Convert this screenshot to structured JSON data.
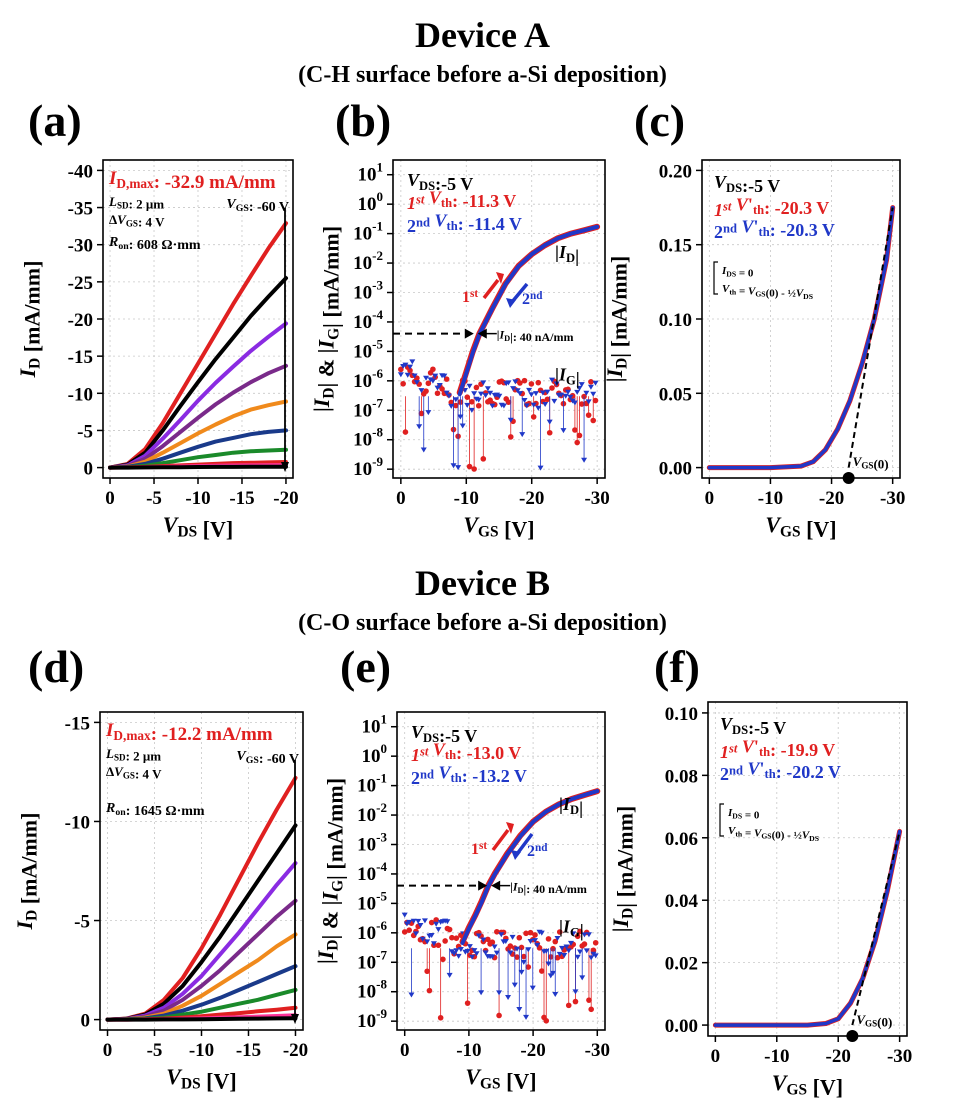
{
  "deviceA": {
    "title": "Device A",
    "subtitle": "(C-H surface before a-Si deposition)"
  },
  "deviceB": {
    "title": "Device B",
    "subtitle": "(C-O surface before a-Si deposition)"
  },
  "colors": {
    "red": "#e02020",
    "blue": "#2038c8",
    "black": "#000000",
    "orange": "#f08a1c",
    "purple": "#8a2be2",
    "violet": "#7a2a8a",
    "navy": "#1a3a8a",
    "green": "#1a8a2a",
    "pink": "#ff3399",
    "grid": "#c8c8c8"
  },
  "chart_data": [
    {
      "panel": "(a)",
      "type": "line",
      "xlabel": "V_DS [V]",
      "ylabel": "I_D [mA/mm]",
      "xlim": [
        0,
        -20
      ],
      "ylim": [
        0,
        -40
      ],
      "xticks": [
        "0",
        "-5",
        "-10",
        "-15",
        "-20"
      ],
      "yticks": [
        "0",
        "-5",
        "-10",
        "-15",
        "-20",
        "-25",
        "-30",
        "-35",
        "-40"
      ],
      "annotations": [
        "I_D,max: -32.9 mA/mm",
        "L_SD: 2 μm",
        "ΔV_GS: 4 V",
        "R_on: 608 Ω·mm",
        "V_GS: -60 V"
      ],
      "series": [
        {
          "color": "red",
          "x": [
            0,
            -2,
            -4,
            -6,
            -8,
            -10,
            -12,
            -14,
            -16,
            -18,
            -20
          ],
          "y": [
            0,
            -0.5,
            -2.5,
            -6,
            -10,
            -14,
            -18,
            -22,
            -25.8,
            -29.5,
            -32.9
          ]
        },
        {
          "color": "black",
          "x": [
            0,
            -2,
            -4,
            -6,
            -8,
            -10,
            -12,
            -14,
            -16,
            -18,
            -20
          ],
          "y": [
            0,
            -0.4,
            -2,
            -5,
            -8.3,
            -11.5,
            -14.6,
            -17.5,
            -20.4,
            -23,
            -25.5
          ]
        },
        {
          "color": "purple",
          "x": [
            0,
            -2,
            -4,
            -6,
            -8,
            -10,
            -12,
            -14,
            -16,
            -18,
            -20
          ],
          "y": [
            0,
            -0.3,
            -1.6,
            -3.9,
            -6.4,
            -9,
            -11.4,
            -13.6,
            -15.7,
            -17.6,
            -19.4
          ]
        },
        {
          "color": "violet",
          "x": [
            0,
            -2,
            -4,
            -6,
            -8,
            -10,
            -12,
            -14,
            -16,
            -18,
            -20
          ],
          "y": [
            0,
            -0.2,
            -1.2,
            -2.9,
            -4.8,
            -6.7,
            -8.5,
            -10.1,
            -11.5,
            -12.7,
            -13.7
          ]
        },
        {
          "color": "orange",
          "x": [
            0,
            -2,
            -4,
            -6,
            -8,
            -10,
            -12,
            -14,
            -16,
            -18,
            -20
          ],
          "y": [
            0,
            -0.15,
            -0.8,
            -2,
            -3.3,
            -4.6,
            -5.8,
            -6.9,
            -7.8,
            -8.4,
            -8.9
          ]
        },
        {
          "color": "navy",
          "x": [
            0,
            -2,
            -4,
            -6,
            -8,
            -10,
            -12,
            -14,
            -16,
            -18,
            -20
          ],
          "y": [
            0,
            -0.1,
            -0.5,
            -1.2,
            -2,
            -2.8,
            -3.5,
            -4,
            -4.5,
            -4.8,
            -5
          ]
        },
        {
          "color": "green",
          "x": [
            0,
            -2,
            -4,
            -6,
            -8,
            -10,
            -12,
            -14,
            -16,
            -18,
            -20
          ],
          "y": [
            0,
            -0.05,
            -0.25,
            -0.6,
            -1,
            -1.4,
            -1.7,
            -2,
            -2.2,
            -2.3,
            -2.4
          ]
        },
        {
          "color": "red",
          "x": [
            0,
            -2,
            -4,
            -6,
            -8,
            -10,
            -12,
            -14,
            -16,
            -18,
            -20
          ],
          "y": [
            0,
            -0.02,
            -0.1,
            -0.2,
            -0.3,
            -0.4,
            -0.5,
            -0.6,
            -0.65,
            -0.7,
            -0.75
          ]
        },
        {
          "color": "pink",
          "x": [
            0,
            -2,
            -4,
            -6,
            -8,
            -10,
            -12,
            -14,
            -16,
            -18,
            -20
          ],
          "y": [
            0,
            -0.01,
            -0.05,
            -0.1,
            -0.15,
            -0.2,
            -0.25,
            -0.28,
            -0.3,
            -0.32,
            -0.34
          ]
        },
        {
          "color": "black",
          "x": [
            0,
            -2,
            -4,
            -6,
            -8,
            -10,
            -12,
            -14,
            -16,
            -18,
            -20
          ],
          "y": [
            0,
            0,
            -0.02,
            -0.04,
            -0.06,
            -0.08,
            -0.09,
            -0.1,
            -0.11,
            -0.12,
            -0.12
          ]
        }
      ]
    },
    {
      "panel": "(b)",
      "type": "line",
      "yscale": "log",
      "xlabel": "V_GS [V]",
      "ylabel": "|I_D| & |I_G| [mA/mm]",
      "xlim": [
        0,
        -30
      ],
      "ylim": [
        1e-09,
        10
      ],
      "xticks": [
        "0",
        "-10",
        "-20",
        "-30"
      ],
      "annotations": [
        "V_DS:-5 V",
        "1st V_th: -11.3 V",
        "2nd V_th: -11.4 V",
        "|I_D|",
        "|I_G|",
        "|I_D|: 40 nA/mm",
        "1st",
        "2nd"
      ],
      "series": [
        {
          "name": "1st",
          "color": "red",
          "x": [
            -9,
            -10,
            -11,
            -12,
            -14,
            -16,
            -18,
            -20,
            -22,
            -24,
            -26,
            -28,
            -30
          ],
          "y": [
            4e-07,
            2e-06,
            1e-05,
            4e-05,
            0.0003,
            0.002,
            0.008,
            0.02,
            0.04,
            0.07,
            0.1,
            0.13,
            0.17
          ]
        },
        {
          "name": "2nd",
          "color": "blue",
          "x": [
            -9,
            -10,
            -11,
            -12,
            -14,
            -16,
            -18,
            -20,
            -22,
            -24,
            -26,
            -28,
            -30
          ],
          "y": [
            3.5e-07,
            1.8e-06,
            9e-06,
            3.8e-05,
            0.00029,
            0.0019,
            0.0078,
            0.02,
            0.04,
            0.07,
            0.1,
            0.13,
            0.17
          ]
        }
      ],
      "gate_leakage_range": [
        3e-09,
        3e-06
      ]
    },
    {
      "panel": "(c)",
      "type": "line",
      "xlabel": "V_GS [V]",
      "ylabel": "|I_D| [mA/mm]",
      "xlim": [
        0,
        -30
      ],
      "ylim": [
        0,
        0.2
      ],
      "xticks": [
        "0",
        "-10",
        "-20",
        "-30"
      ],
      "yticks": [
        "0.00",
        "0.05",
        "0.10",
        "0.15",
        "0.20"
      ],
      "annotations": [
        "V_DS:-5 V",
        "1st V'_th: -20.3 V",
        "2nd V'_th: -20.3 V",
        "I_DS = 0",
        "V_th = V_GS(0) - ½V_DS",
        "V_GS(0)"
      ],
      "series": [
        {
          "name": "1st",
          "color": "red",
          "x": [
            0,
            -10,
            -15,
            -17,
            -19,
            -21,
            -23,
            -25,
            -27,
            -29,
            -30
          ],
          "y": [
            0,
            0,
            0.001,
            0.004,
            0.012,
            0.026,
            0.045,
            0.07,
            0.1,
            0.14,
            0.175
          ]
        },
        {
          "name": "2nd",
          "color": "blue",
          "x": [
            0,
            -10,
            -15,
            -17,
            -19,
            -21,
            -23,
            -25,
            -27,
            -29,
            -30
          ],
          "y": [
            0,
            0,
            0.001,
            0.004,
            0.012,
            0.026,
            0.045,
            0.07,
            0.1,
            0.14,
            0.175
          ]
        }
      ],
      "fit_line": {
        "x": [
          -22.8,
          -30
        ],
        "y": [
          0,
          0.175
        ]
      },
      "vgs0": -22.8
    },
    {
      "panel": "(d)",
      "type": "line",
      "xlabel": "V_DS [V]",
      "ylabel": "I_D [mA/mm]",
      "xlim": [
        0,
        -20
      ],
      "ylim": [
        0,
        -15
      ],
      "xticks": [
        "0",
        "-5",
        "-10",
        "-15",
        "-20"
      ],
      "yticks": [
        "0",
        "-5",
        "-10",
        "-15"
      ],
      "annotations": [
        "I_D,max: -12.2 mA/mm",
        "L_SD: 2 μm",
        "ΔV_GS: 4 V",
        "R_on: 1645 Ω·mm",
        "V_GS: -60 V"
      ],
      "series": [
        {
          "color": "red",
          "x": [
            0,
            -2,
            -4,
            -6,
            -8,
            -10,
            -12,
            -14,
            -16,
            -18,
            -20
          ],
          "y": [
            0,
            -0.05,
            -0.3,
            -1,
            -2.1,
            -3.6,
            -5.3,
            -7.1,
            -8.9,
            -10.6,
            -12.2
          ]
        },
        {
          "color": "black",
          "x": [
            0,
            -2,
            -4,
            -6,
            -8,
            -10,
            -12,
            -14,
            -16,
            -18,
            -20
          ],
          "y": [
            0,
            -0.04,
            -0.25,
            -0.8,
            -1.7,
            -2.9,
            -4.2,
            -5.6,
            -7,
            -8.4,
            -9.8
          ]
        },
        {
          "color": "purple",
          "x": [
            0,
            -2,
            -4,
            -6,
            -8,
            -10,
            -12,
            -14,
            -16,
            -18,
            -20
          ],
          "y": [
            0,
            -0.03,
            -0.2,
            -0.6,
            -1.3,
            -2.2,
            -3.3,
            -4.4,
            -5.6,
            -6.8,
            -7.9
          ]
        },
        {
          "color": "violet",
          "x": [
            0,
            -2,
            -4,
            -6,
            -8,
            -10,
            -12,
            -14,
            -16,
            -18,
            -20
          ],
          "y": [
            0,
            -0.02,
            -0.15,
            -0.45,
            -1,
            -1.7,
            -2.5,
            -3.4,
            -4.3,
            -5.2,
            -6
          ]
        },
        {
          "color": "orange",
          "x": [
            0,
            -2,
            -4,
            -6,
            -8,
            -10,
            -12,
            -14,
            -16,
            -18,
            -20
          ],
          "y": [
            0,
            -0.02,
            -0.1,
            -0.3,
            -0.7,
            -1.2,
            -1.8,
            -2.4,
            -3,
            -3.7,
            -4.3
          ]
        },
        {
          "color": "navy",
          "x": [
            0,
            -2,
            -4,
            -6,
            -8,
            -10,
            -12,
            -14,
            -16,
            -18,
            -20
          ],
          "y": [
            0,
            -0.01,
            -0.06,
            -0.2,
            -0.45,
            -0.75,
            -1.1,
            -1.5,
            -1.9,
            -2.3,
            -2.7
          ]
        },
        {
          "color": "green",
          "x": [
            0,
            -2,
            -4,
            -6,
            -8,
            -10,
            -12,
            -14,
            -16,
            -18,
            -20
          ],
          "y": [
            0,
            -0.01,
            -0.04,
            -0.1,
            -0.25,
            -0.4,
            -0.6,
            -0.8,
            -1,
            -1.25,
            -1.5
          ]
        },
        {
          "color": "red",
          "x": [
            0,
            -2,
            -4,
            -6,
            -8,
            -10,
            -12,
            -14,
            -16,
            -18,
            -20
          ],
          "y": [
            0,
            0,
            -0.02,
            -0.05,
            -0.1,
            -0.17,
            -0.25,
            -0.33,
            -0.42,
            -0.5,
            -0.6
          ]
        },
        {
          "color": "pink",
          "x": [
            0,
            -2,
            -4,
            -6,
            -8,
            -10,
            -12,
            -14,
            -16,
            -18,
            -20
          ],
          "y": [
            0,
            0,
            -0.01,
            -0.02,
            -0.04,
            -0.06,
            -0.09,
            -0.12,
            -0.15,
            -0.18,
            -0.22
          ]
        },
        {
          "color": "black",
          "x": [
            0,
            -2,
            -4,
            -6,
            -8,
            -10,
            -12,
            -14,
            -16,
            -18,
            -20
          ],
          "y": [
            0,
            0,
            0,
            -0.01,
            -0.01,
            -0.02,
            -0.03,
            -0.04,
            -0.05,
            -0.06,
            -0.07
          ]
        }
      ]
    },
    {
      "panel": "(e)",
      "type": "line",
      "yscale": "log",
      "xlabel": "V_GS [V]",
      "ylabel": "|I_D| & |I_G| [mA/mm]",
      "xlim": [
        0,
        -30
      ],
      "ylim": [
        1e-09,
        10
      ],
      "xticks": [
        "0",
        "-10",
        "-20",
        "-30"
      ],
      "annotations": [
        "V_DS:-5 V",
        "1st V_th: -13.0 V",
        "2nd V_th: -13.2 V",
        "|I_D|",
        "|I_G|",
        "|I_D|: 40 nA/mm",
        "1st",
        "2nd"
      ],
      "series": [
        {
          "name": "1st",
          "color": "red",
          "x": [
            -9,
            -10,
            -11,
            -12,
            -13,
            -14,
            -16,
            -18,
            -20,
            -22,
            -24,
            -26,
            -28,
            -30
          ],
          "y": [
            5e-07,
            1.5e-06,
            4e-06,
            1.2e-05,
            4e-05,
            0.0001,
            0.0005,
            0.002,
            0.006,
            0.013,
            0.023,
            0.035,
            0.048,
            0.065
          ]
        },
        {
          "name": "2nd",
          "color": "blue",
          "x": [
            -9,
            -10,
            -11,
            -12,
            -13,
            -14,
            -16,
            -18,
            -20,
            -22,
            -24,
            -26,
            -28,
            -30
          ],
          "y": [
            4.5e-07,
            1.4e-06,
            3.8e-06,
            1.1e-05,
            3.8e-05,
            9.5e-05,
            0.00048,
            0.0019,
            0.0059,
            0.013,
            0.023,
            0.035,
            0.048,
            0.065
          ]
        }
      ],
      "gate_leakage_range": [
        3e-09,
        3e-06
      ]
    },
    {
      "panel": "(f)",
      "type": "line",
      "xlabel": "V_GS [V]",
      "ylabel": "|I_D| [mA/mm]",
      "xlim": [
        0,
        -30
      ],
      "ylim": [
        0,
        0.1
      ],
      "xticks": [
        "0",
        "-10",
        "-20",
        "-30"
      ],
      "yticks": [
        "0.00",
        "0.02",
        "0.04",
        "0.06",
        "0.08",
        "0.10"
      ],
      "annotations": [
        "V_DS:-5 V",
        "1st V'_th: -19.9 V",
        "2nd V'_th: -20.2 V",
        "I_DS = 0",
        "V_th = V_GS(0) - ½V_DS",
        "V_GS(0)"
      ],
      "series": [
        {
          "name": "1st",
          "color": "red",
          "x": [
            0,
            -10,
            -15,
            -18,
            -20,
            -22,
            -24,
            -26,
            -28,
            -30
          ],
          "y": [
            0,
            0,
            0,
            0.0005,
            0.002,
            0.007,
            0.015,
            0.027,
            0.043,
            0.062
          ]
        },
        {
          "name": "2nd",
          "color": "blue",
          "x": [
            0,
            -10,
            -15,
            -18,
            -20,
            -22,
            -24,
            -26,
            -28,
            -30
          ],
          "y": [
            0,
            0,
            0,
            0.0005,
            0.002,
            0.007,
            0.015,
            0.027,
            0.043,
            0.062
          ]
        }
      ],
      "fit_line": {
        "x": [
          -22.3,
          -30
        ],
        "y": [
          0,
          0.062
        ]
      },
      "vgs0": -22.3
    }
  ]
}
